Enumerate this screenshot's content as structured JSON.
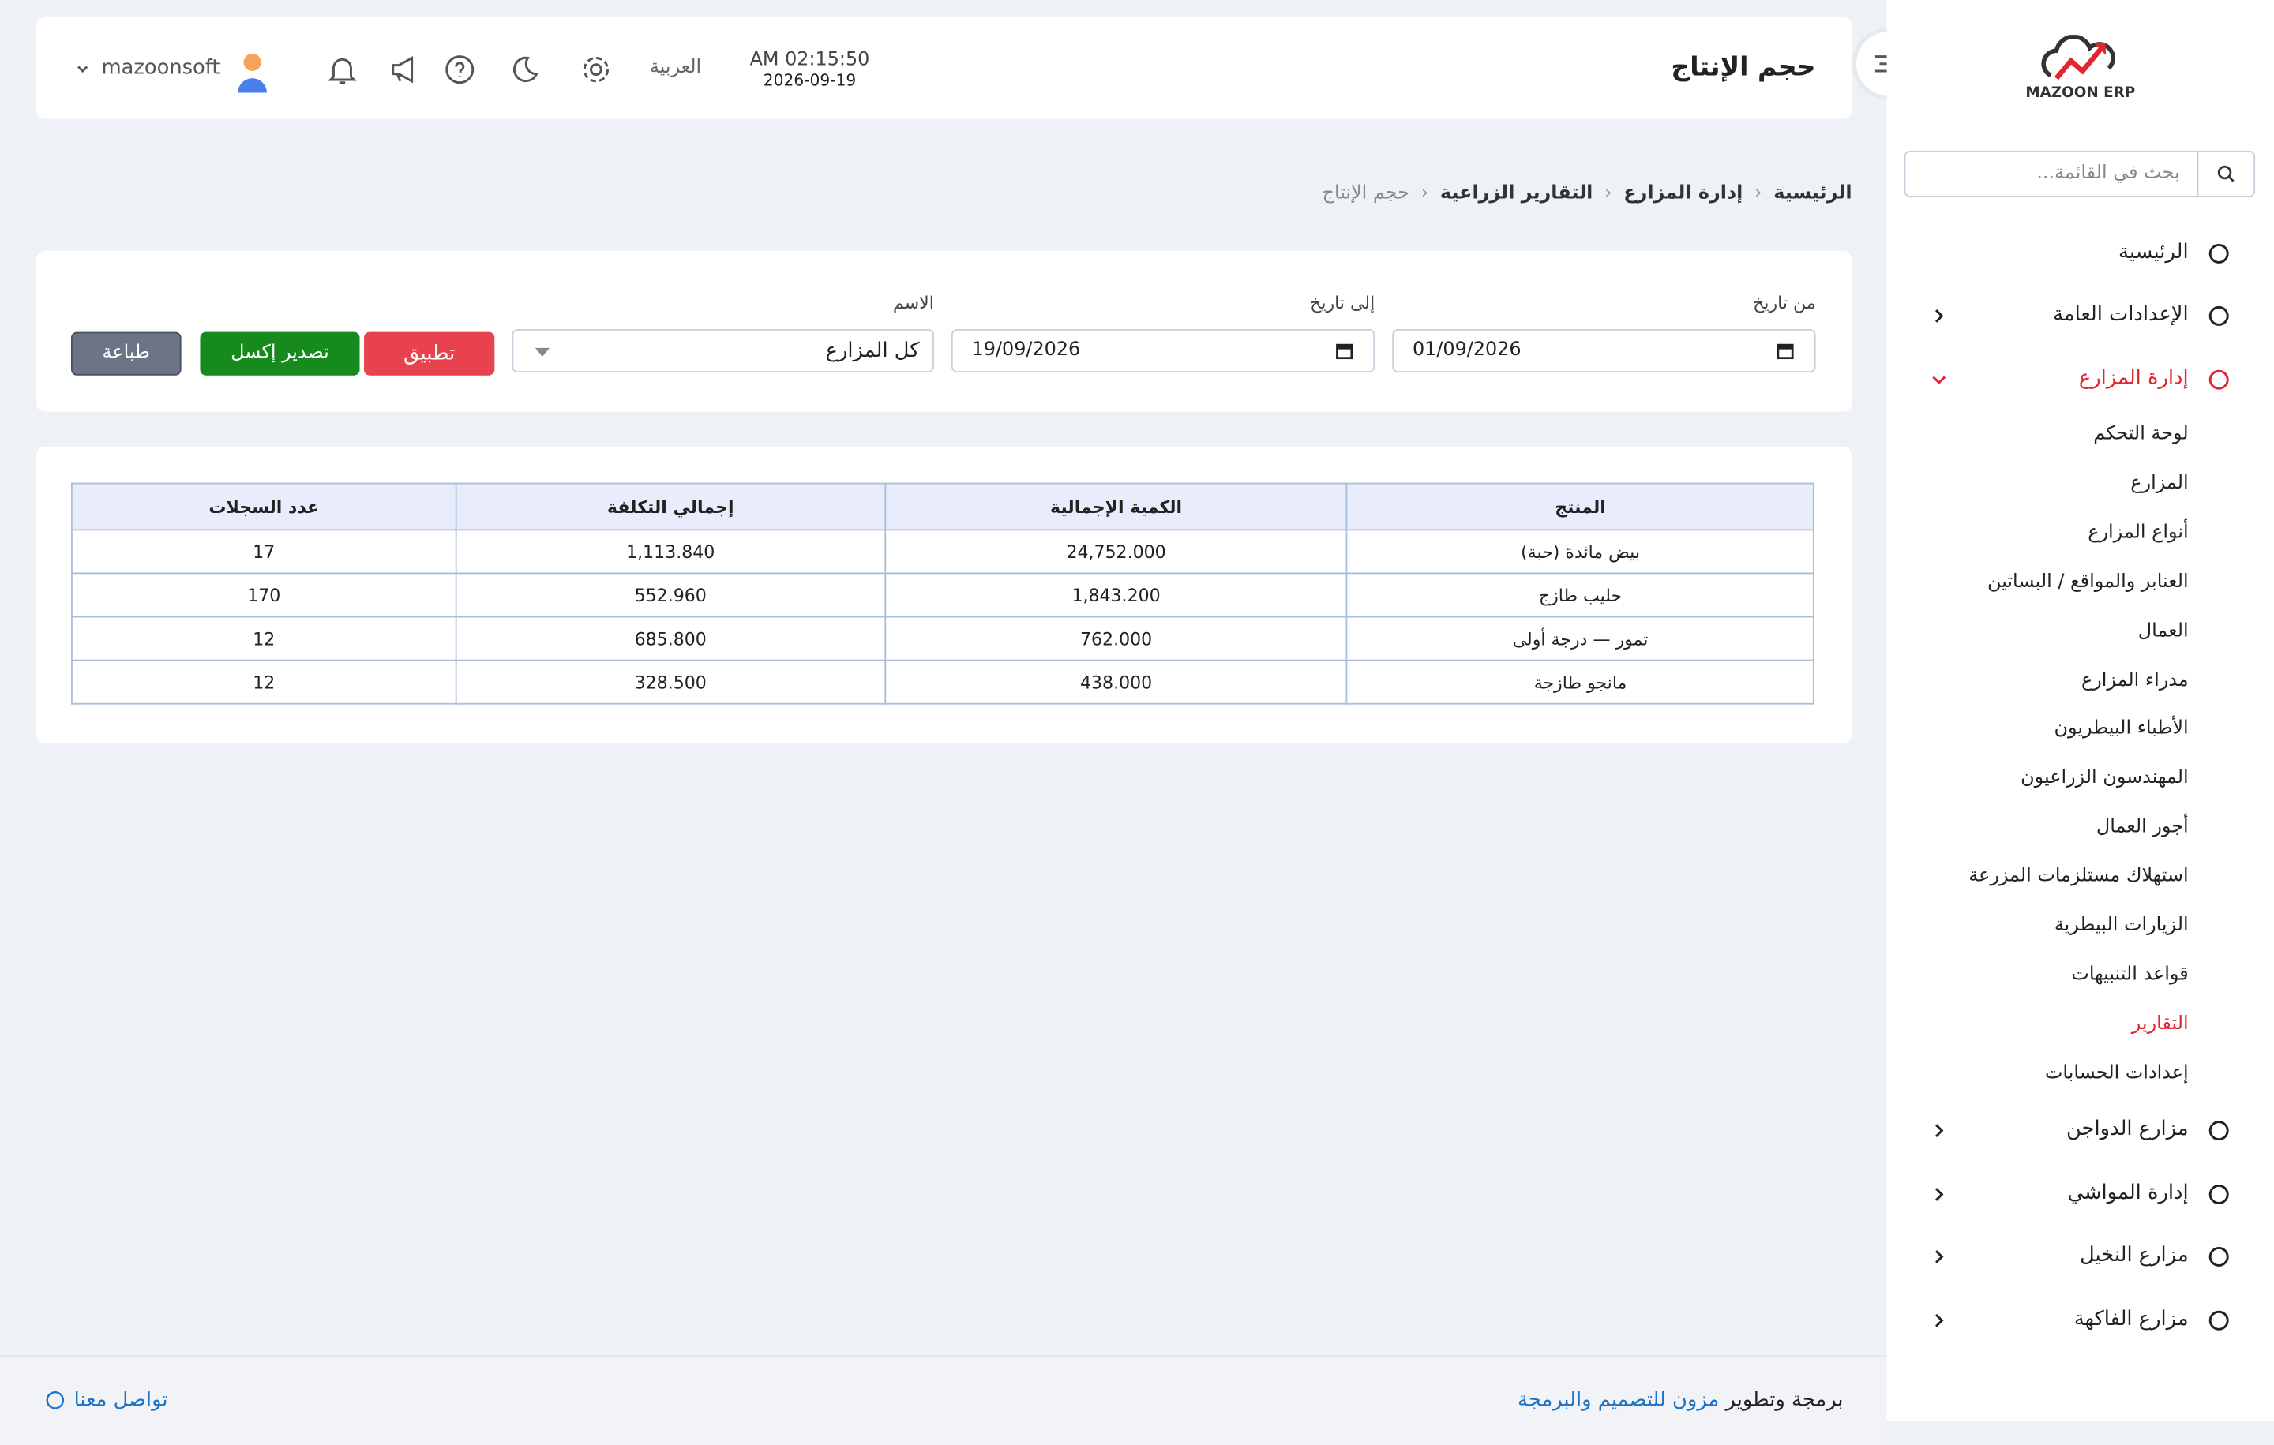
{
  "header": {
    "title": "حجم الإنتاج",
    "time": "AM 02:15:50",
    "date": "2026-09-19",
    "language": "العربية",
    "user": "mazoonsoft"
  },
  "breadcrumb": [
    "الرئيسية",
    "إدارة المزارع",
    "التقارير الزراعية",
    "حجم الإنتاج"
  ],
  "filters": {
    "from_label": "من تاريخ",
    "from_value": "01/09/2026",
    "to_label": "إلى تاريخ",
    "to_value": "19/09/2026",
    "name_label": "الاسم",
    "name_value": "كل المزارع",
    "apply": "تطبيق",
    "export": "تصدير إكسل",
    "print": "طباعة"
  },
  "table": {
    "columns": [
      "المنتج",
      "الكمية الإجمالية",
      "إجمالي التكلفة",
      "عدد السجلات"
    ],
    "rows": [
      [
        "بيض مائدة (حبة)",
        "24,752.000",
        "1,113.840",
        "17"
      ],
      [
        "حليب طازج",
        "1,843.200",
        "552.960",
        "170"
      ],
      [
        "تمور — درجة أولى",
        "762.000",
        "685.800",
        "12"
      ],
      [
        "مانجو طازجة",
        "438.000",
        "328.500",
        "12"
      ]
    ]
  },
  "sidebar": {
    "logo": "MAZOON ERP",
    "search_placeholder": "بحث في القائمة...",
    "menu": [
      {
        "label": "الرئيسية"
      },
      {
        "label": "الإعدادات العامة"
      },
      {
        "label": "إدارة المزارع",
        "active": true,
        "submenu": [
          {
            "label": "لوحة التحكم"
          },
          {
            "label": "المزارع"
          },
          {
            "label": "أنواع المزارع"
          },
          {
            "label": "العنابر والمواقع / البساتين"
          },
          {
            "label": "العمال"
          },
          {
            "label": "مدراء المزارع"
          },
          {
            "label": "الأطباء البيطريون"
          },
          {
            "label": "المهندسون الزراعيون"
          },
          {
            "label": "أجور العمال"
          },
          {
            "label": "استهلاك مستلزمات المزرعة"
          },
          {
            "label": "الزيارات البيطرية"
          },
          {
            "label": "قواعد التنبيهات"
          },
          {
            "label": "التقارير",
            "active": true
          },
          {
            "label": "إعدادات الحسابات"
          }
        ]
      },
      {
        "label": "مزارع الدواجن"
      },
      {
        "label": "إدارة المواشي"
      },
      {
        "label": "مزارع النخيل"
      },
      {
        "label": "مزارع الفاكهة"
      }
    ]
  },
  "footer": {
    "credit_prefix": "برمجة وتطوير",
    "credit_link": "مزون للتصميم والبرمجة",
    "contact": "تواصل معنا"
  }
}
